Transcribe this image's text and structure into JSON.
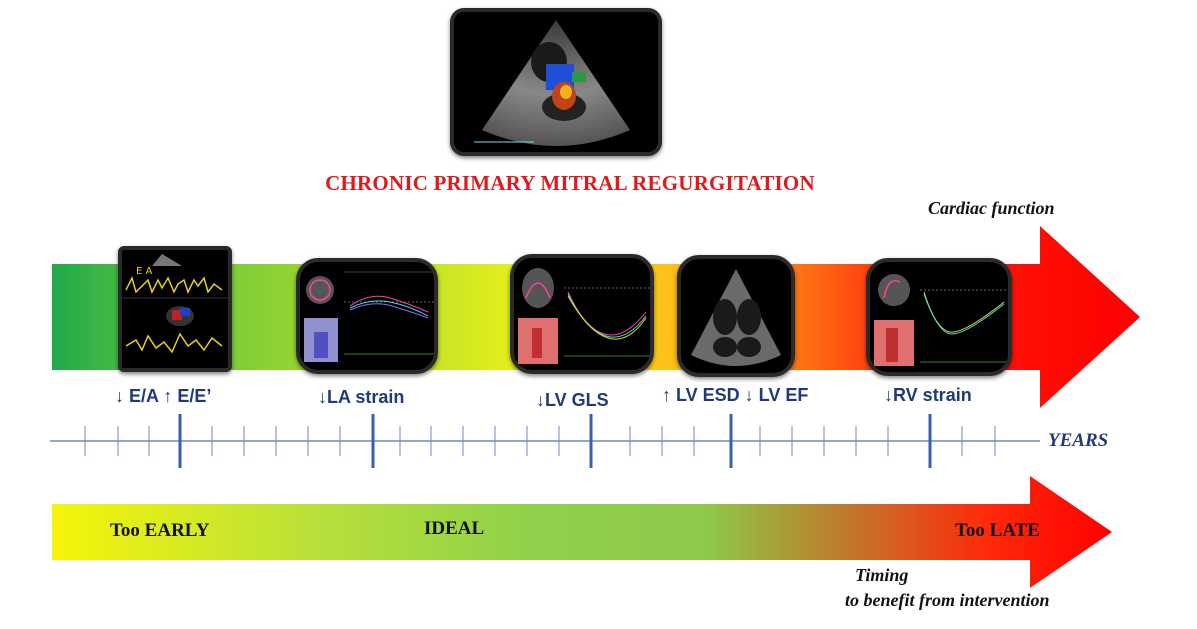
{
  "title": "CHRONIC PRIMARY MITRAL REGURGITATION",
  "top_arrow": {
    "label": "Cardiac function",
    "gradient": [
      "#1faa4a",
      "#eef21a",
      "#ff9a1a",
      "#ff0000"
    ]
  },
  "markers": [
    {
      "label": "↓ E/A ↑ E/E’",
      "image": "doppler-echo-icon"
    },
    {
      "label": "↓LA strain",
      "image": "la-strain-echo-icon"
    },
    {
      "label": "↓LV GLS",
      "image": "lv-gls-echo-icon"
    },
    {
      "label": "↑ LV ESD ↓ LV EF",
      "image": "apical-echo-icon"
    },
    {
      "label": "↓RV strain",
      "image": "rv-strain-echo-icon"
    }
  ],
  "timeline": {
    "label": "YEARS"
  },
  "bottom_arrow": {
    "zones": [
      "Too EARLY",
      "IDEAL",
      "Too LATE"
    ],
    "gradient": [
      "#f5f50a",
      "#8fd14a",
      "#ff0000"
    ],
    "label_line1": "Timing",
    "label_line2": "to benefit from intervention"
  }
}
